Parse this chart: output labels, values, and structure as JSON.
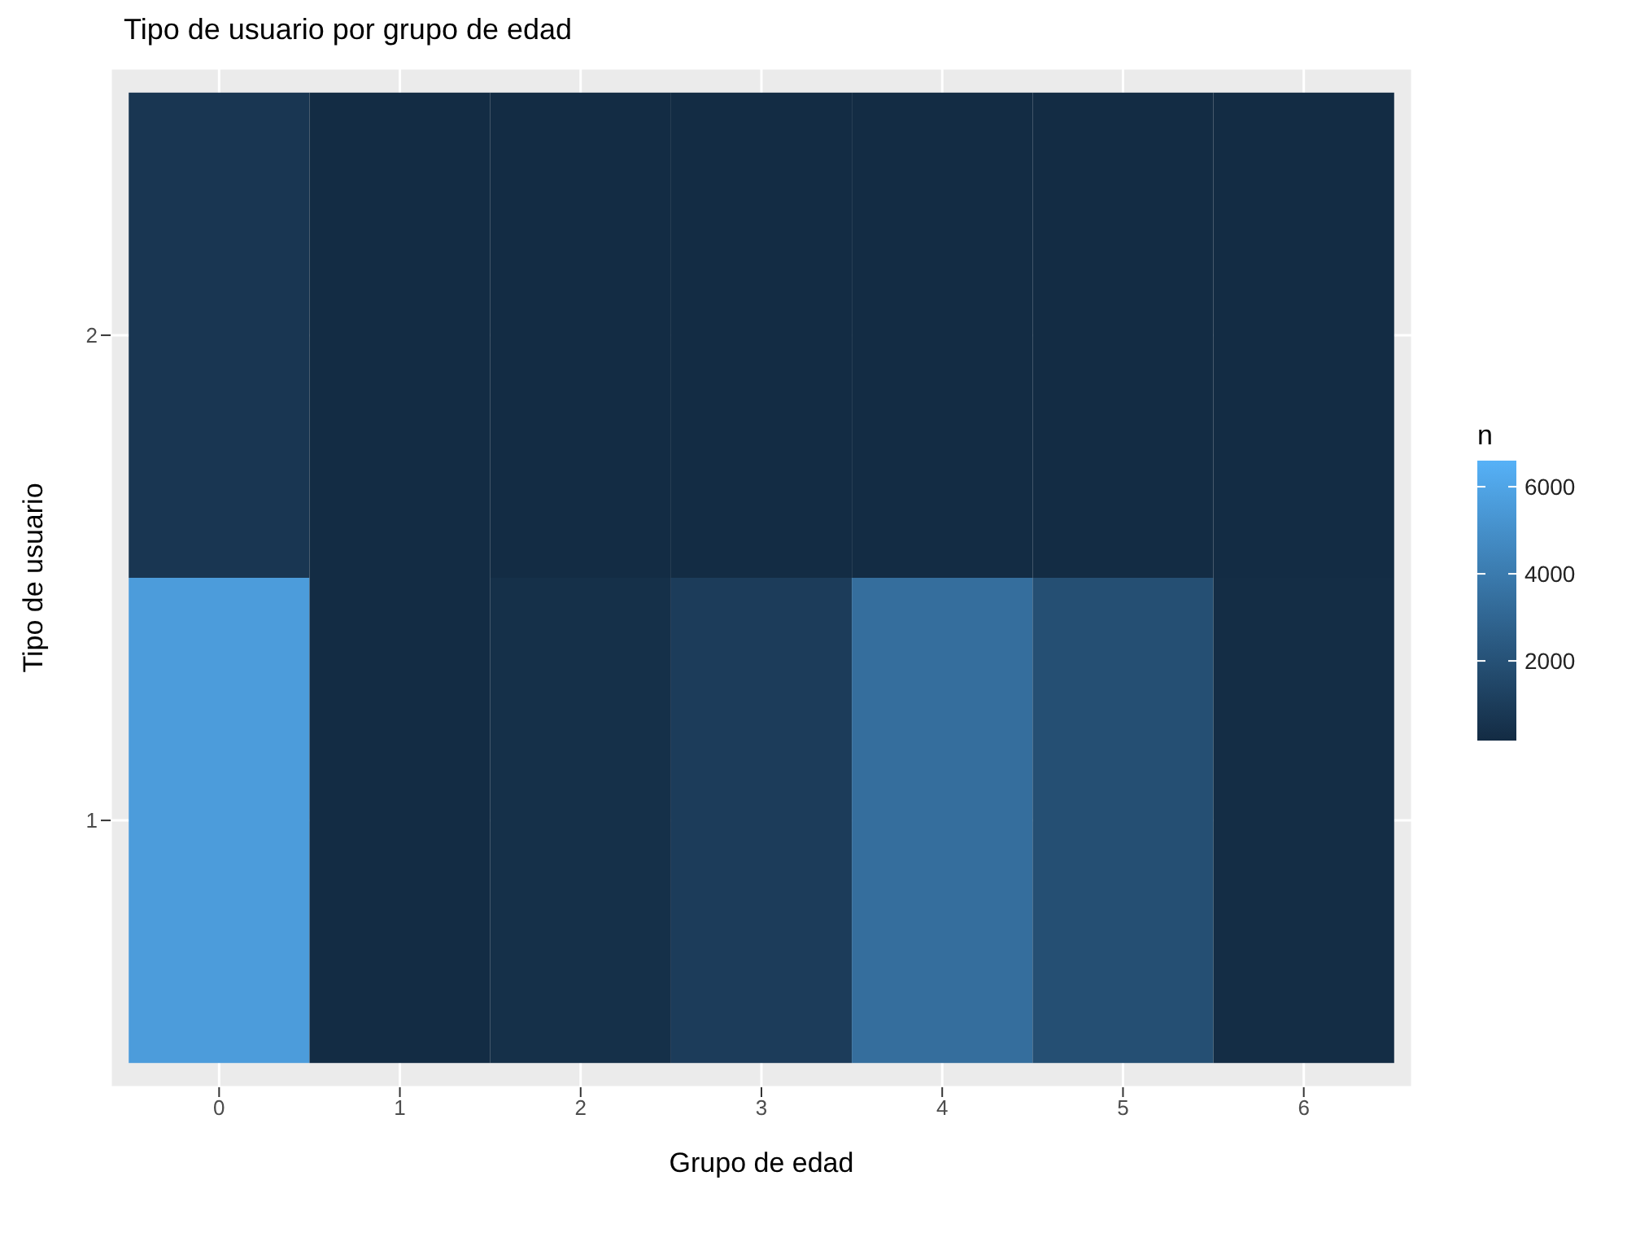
{
  "chart_data": {
    "type": "heatmap",
    "title": "Tipo de usuario por grupo de edad",
    "xlabel": "Grupo de edad",
    "ylabel": "Tipo de usuario",
    "clabel": "n",
    "categories": [
      "0",
      "1",
      "2",
      "3",
      "4",
      "5",
      "6"
    ],
    "y_categories": [
      "2",
      "1"
    ],
    "cells": [
      [
        700,
        200,
        200,
        200,
        200,
        200,
        200
      ],
      [
        5600,
        200,
        400,
        1000,
        3400,
        1900,
        250
      ]
    ],
    "clim": [
      170,
      6600
    ],
    "cticks": [
      2000,
      4000,
      6000
    ],
    "colors": [
      "#132b43",
      "#56b1f7"
    ],
    "grid": true
  }
}
